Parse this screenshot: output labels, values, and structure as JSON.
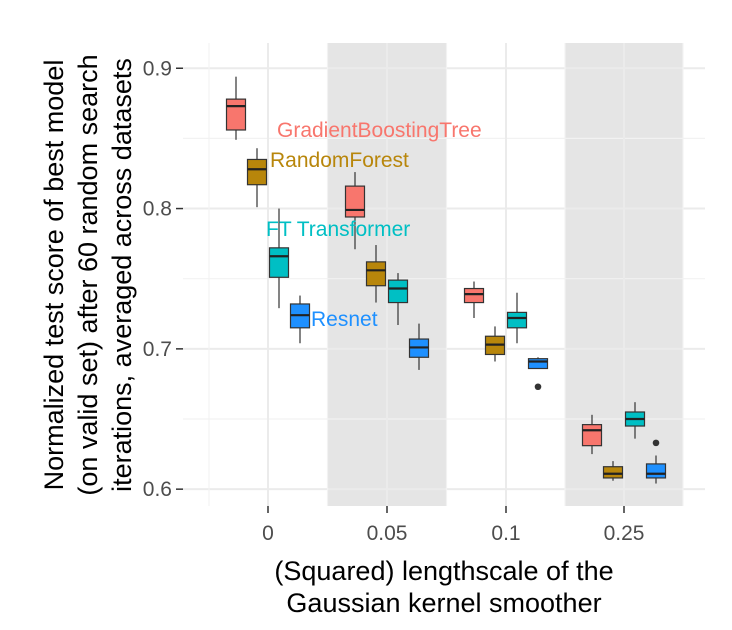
{
  "chart_data": {
    "type": "boxplot",
    "x_title_lines": [
      "(Squared) lengthscale of the",
      "Gaussian kernel smoother"
    ],
    "y_title_lines": [
      "Normalized test score of best model",
      "(on valid set) after 60 random search",
      "iterations, averaged across datasets"
    ],
    "categories": [
      "0",
      "0.05",
      "0.1",
      "0.25"
    ],
    "shaded_categories": [
      "0.05",
      "0.25"
    ],
    "y_ticks": [
      "0.6",
      "0.7",
      "0.8",
      "0.9"
    ],
    "ylim": [
      0.588,
      0.918
    ],
    "grid": true,
    "series": [
      {
        "name": "GradientBoostingTree",
        "color": "#F8766D",
        "label_color": "#F8766D",
        "boxes": [
          {
            "category": "0",
            "min": 0.849,
            "q1": 0.856,
            "median": 0.873,
            "q3": 0.878,
            "max": 0.894,
            "outliers": []
          },
          {
            "category": "0.05",
            "min": 0.771,
            "q1": 0.794,
            "median": 0.799,
            "q3": 0.816,
            "max": 0.826,
            "outliers": []
          },
          {
            "category": "0.1",
            "min": 0.722,
            "q1": 0.733,
            "median": 0.739,
            "q3": 0.743,
            "max": 0.748,
            "outliers": []
          },
          {
            "category": "0.25",
            "min": 0.625,
            "q1": 0.631,
            "median": 0.642,
            "q3": 0.646,
            "max": 0.653,
            "outliers": []
          }
        ]
      },
      {
        "name": "RandomForest",
        "color": "#B8860B",
        "label_color": "#B8860B",
        "boxes": [
          {
            "category": "0",
            "min": 0.801,
            "q1": 0.817,
            "median": 0.828,
            "q3": 0.835,
            "max": 0.843,
            "outliers": []
          },
          {
            "category": "0.05",
            "min": 0.733,
            "q1": 0.745,
            "median": 0.756,
            "q3": 0.762,
            "max": 0.774,
            "outliers": []
          },
          {
            "category": "0.1",
            "min": 0.691,
            "q1": 0.696,
            "median": 0.703,
            "q3": 0.709,
            "max": 0.716,
            "outliers": []
          },
          {
            "category": "0.25",
            "min": 0.606,
            "q1": 0.608,
            "median": 0.611,
            "q3": 0.616,
            "max": 0.62,
            "outliers": []
          }
        ]
      },
      {
        "name": "FT Transformer",
        "color": "#00BFC4",
        "label_color": "#00BFC4",
        "boxes": [
          {
            "category": "0",
            "min": 0.729,
            "q1": 0.751,
            "median": 0.766,
            "q3": 0.772,
            "max": 0.8,
            "outliers": []
          },
          {
            "category": "0.05",
            "min": 0.717,
            "q1": 0.733,
            "median": 0.743,
            "q3": 0.749,
            "max": 0.754,
            "outliers": []
          },
          {
            "category": "0.1",
            "min": 0.704,
            "q1": 0.715,
            "median": 0.722,
            "q3": 0.726,
            "max": 0.74,
            "outliers": []
          },
          {
            "category": "0.25",
            "min": 0.636,
            "q1": 0.645,
            "median": 0.65,
            "q3": 0.655,
            "max": 0.662,
            "outliers": []
          }
        ]
      },
      {
        "name": "Resnet",
        "color": "#1E90FF",
        "label_color": "#1E90FF",
        "boxes": [
          {
            "category": "0",
            "min": 0.704,
            "q1": 0.715,
            "median": 0.724,
            "q3": 0.732,
            "max": 0.738,
            "outliers": []
          },
          {
            "category": "0.05",
            "min": 0.685,
            "q1": 0.694,
            "median": 0.701,
            "q3": 0.707,
            "max": 0.718,
            "outliers": []
          },
          {
            "category": "0.1",
            "min": 0.686,
            "q1": 0.686,
            "median": 0.691,
            "q3": 0.693,
            "max": 0.694,
            "outliers": [
              0.673
            ]
          },
          {
            "category": "0.25",
            "min": 0.604,
            "q1": 0.608,
            "median": 0.611,
            "q3": 0.618,
            "max": 0.624,
            "outliers": [
              0.633
            ]
          }
        ]
      }
    ]
  }
}
